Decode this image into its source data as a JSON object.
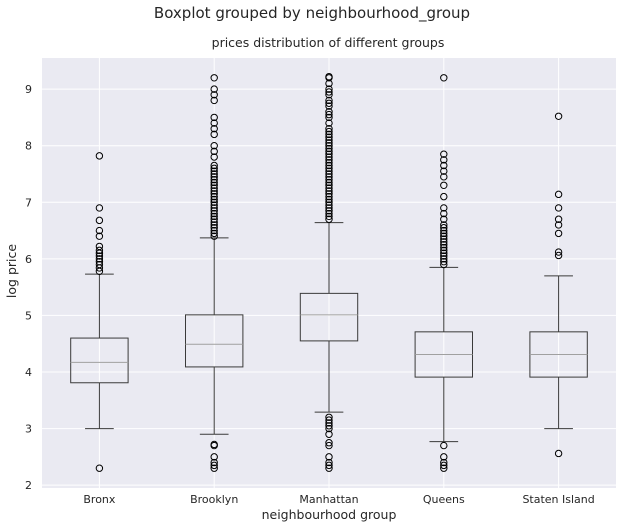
{
  "chart_data": {
    "type": "boxplot",
    "suptitle": "Boxplot grouped by neighbourhood_group",
    "title": "prices distribution of different groups",
    "xlabel": "neighbourhood group",
    "ylabel": "log price",
    "ylim": [
      1.95,
      9.55
    ],
    "yticks": [
      2,
      3,
      4,
      5,
      6,
      7,
      8,
      9
    ],
    "grid": true,
    "colors": {
      "background": "#eaeaf2",
      "grid": "#ffffff",
      "box": "#3a3a3a",
      "median": "#a0a0a0",
      "flier": "#000000"
    },
    "categories": [
      "Bronx",
      "Brooklyn",
      "Manhattan",
      "Queens",
      "Staten Island"
    ],
    "boxes": [
      {
        "name": "Bronx",
        "whisker_low": 3.0,
        "q1": 3.81,
        "median": 4.17,
        "q3": 4.6,
        "whisker_high": 5.73,
        "fliers": [
          2.3,
          5.78,
          5.84,
          5.9,
          5.95,
          6.0,
          6.05,
          6.1,
          6.15,
          6.22,
          6.4,
          6.5,
          6.68,
          6.9,
          7.82
        ]
      },
      {
        "name": "Brooklyn",
        "whisker_low": 2.9,
        "q1": 4.09,
        "median": 4.49,
        "q3": 5.01,
        "whisker_high": 6.37,
        "fliers": [
          2.3,
          2.35,
          2.4,
          2.5,
          2.7,
          2.72,
          6.4,
          6.45,
          6.5,
          6.55,
          6.6,
          6.65,
          6.7,
          6.75,
          6.8,
          6.85,
          6.9,
          6.95,
          7.0,
          7.05,
          7.1,
          7.15,
          7.2,
          7.25,
          7.3,
          7.35,
          7.4,
          7.45,
          7.5,
          7.55,
          7.6,
          7.65,
          7.8,
          7.9,
          8.0,
          8.2,
          8.3,
          8.4,
          8.5,
          8.8,
          8.9,
          9.0,
          9.2
        ]
      },
      {
        "name": "Manhattan",
        "whisker_low": 3.29,
        "q1": 4.55,
        "median": 5.01,
        "q3": 5.39,
        "whisker_high": 6.64,
        "fliers": [
          2.3,
          2.35,
          2.4,
          2.5,
          2.7,
          2.75,
          2.9,
          3.0,
          3.05,
          3.1,
          3.15,
          3.2,
          6.7,
          6.75,
          6.8,
          6.85,
          6.9,
          6.95,
          7.0,
          7.05,
          7.1,
          7.15,
          7.2,
          7.25,
          7.3,
          7.35,
          7.4,
          7.45,
          7.5,
          7.55,
          7.6,
          7.65,
          7.7,
          7.75,
          7.8,
          7.85,
          7.9,
          7.95,
          8.0,
          8.05,
          8.1,
          8.15,
          8.2,
          8.25,
          8.3,
          8.4,
          8.5,
          8.55,
          8.6,
          8.7,
          8.75,
          8.8,
          8.9,
          8.95,
          9.0,
          9.1,
          9.2,
          9.22
        ]
      },
      {
        "name": "Queens",
        "whisker_low": 2.77,
        "q1": 3.91,
        "median": 4.31,
        "q3": 4.71,
        "whisker_high": 5.85,
        "fliers": [
          2.3,
          2.35,
          2.4,
          2.5,
          2.7,
          5.9,
          5.95,
          6.0,
          6.05,
          6.1,
          6.15,
          6.2,
          6.25,
          6.3,
          6.35,
          6.4,
          6.45,
          6.5,
          6.55,
          6.6,
          6.7,
          6.8,
          6.9,
          7.1,
          7.3,
          7.45,
          7.55,
          7.65,
          7.75,
          7.85,
          9.2
        ]
      },
      {
        "name": "Staten Island",
        "whisker_low": 3.0,
        "q1": 3.91,
        "median": 4.31,
        "q3": 4.71,
        "whisker_high": 5.7,
        "fliers": [
          2.56,
          6.06,
          6.12,
          6.45,
          6.6,
          6.7,
          6.9,
          7.14,
          8.52
        ]
      }
    ]
  }
}
